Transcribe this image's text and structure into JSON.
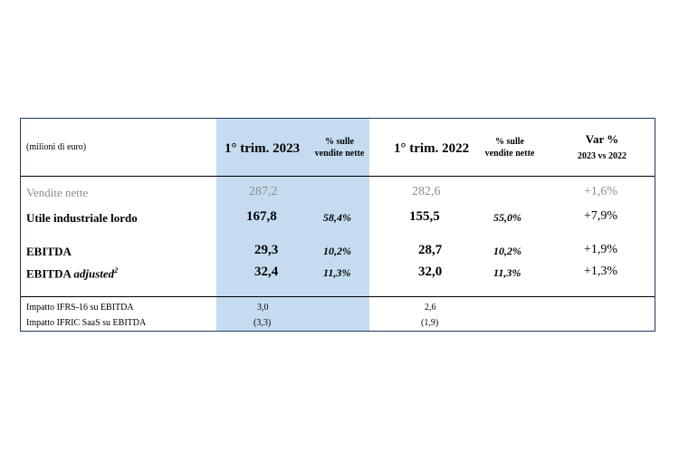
{
  "table": {
    "unit_label": "(milioni di euro)",
    "columns": {
      "q2023": "1° trim. 2023",
      "pct2023": [
        "% sulle",
        "vendite nette"
      ],
      "q2022": "1° trim. 2022",
      "pct2022": [
        "% sulle",
        "vendite nette"
      ],
      "var": [
        "Var %",
        "2023 vs 2022"
      ]
    },
    "rows": [
      {
        "label": "Vendite nette",
        "label_suffix": "",
        "sup": "",
        "v2023": "287,2",
        "p2023": "",
        "v2022": "282,6",
        "p2022": "",
        "var": "+1,6%"
      },
      {
        "label": "Utile industriale lordo",
        "label_suffix": "",
        "sup": "",
        "v2023": "167,8",
        "p2023": "58,4%",
        "v2022": "155,5",
        "p2022": "55,0%",
        "var": "+7,9%"
      },
      {
        "label": "EBITDA",
        "label_suffix": "",
        "sup": "",
        "v2023": "29,3",
        "p2023": "10,2%",
        "v2022": "28,7",
        "p2022": "10,2%",
        "var": "+1,9%"
      },
      {
        "label": "EBITDA",
        "label_suffix": "adjusted",
        "sup": "2",
        "v2023": "32,4",
        "p2023": "11,3%",
        "v2022": "32,0",
        "p2022": "11,3%",
        "var": "+1,3%"
      }
    ],
    "footer_rows": [
      {
        "label": "Impatto IFRS-16 su EBITDA",
        "v2023": "3,0",
        "v2022": "2,6"
      },
      {
        "label": "Impatto IFRIC SaaS su EBITDA",
        "v2023": "(3,3)",
        "v2022": "(1,9)"
      }
    ]
  },
  "colors": {
    "highlight": "#c5dcf0",
    "border": "#1f3a5f",
    "muted_text": "#8c8c8c"
  }
}
